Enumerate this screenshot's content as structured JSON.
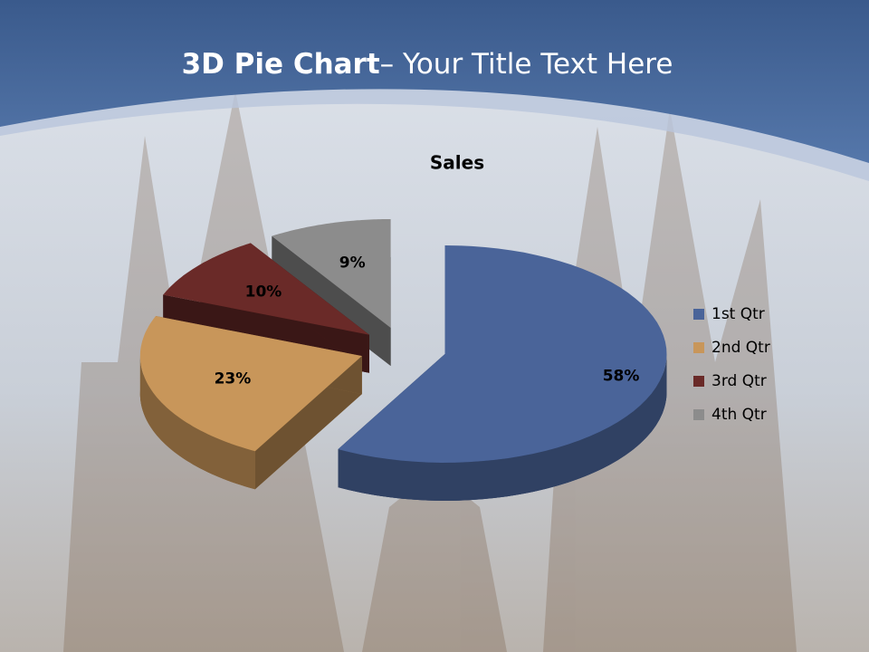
{
  "slide_title": [
    "3D Pie Chart",
    "– Your Title Text Here"
  ],
  "chart_data": {
    "type": "pie",
    "title": "Sales",
    "categories": [
      "1st Qtr",
      "2nd Qtr",
      "3rd Qtr",
      "4th Qtr"
    ],
    "values": [
      58,
      23,
      10,
      9
    ],
    "value_labels": [
      "58%",
      "23%",
      "10%",
      "9%"
    ],
    "colors": [
      "#4a6499",
      "#c8965a",
      "#6a2a28",
      "#8c8c8c"
    ],
    "legend": "right"
  }
}
